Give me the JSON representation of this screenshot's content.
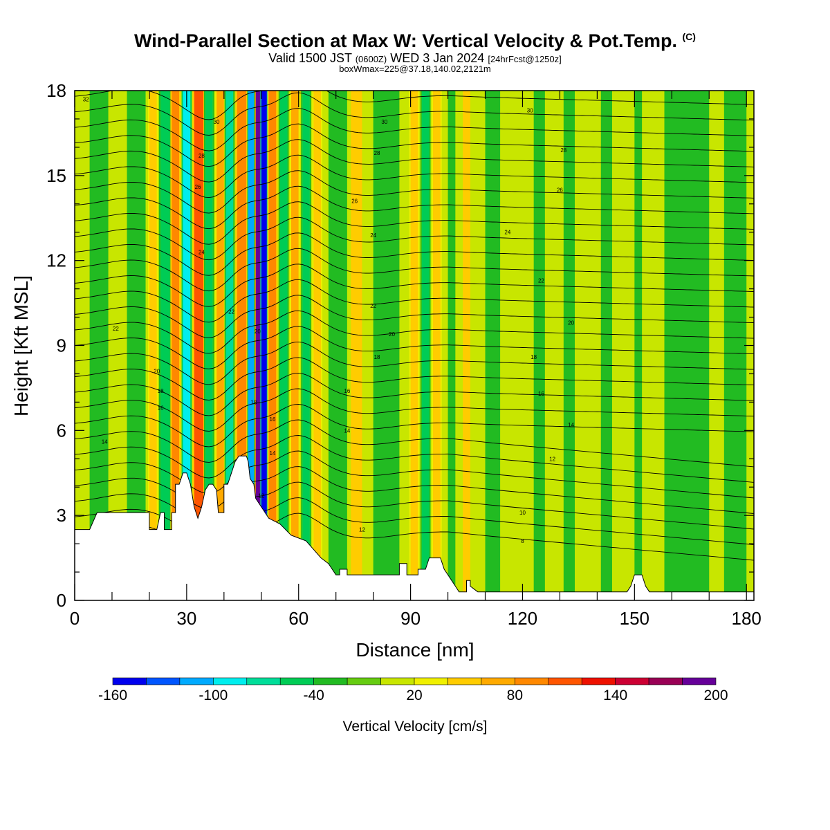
{
  "header": {
    "title": "Wind-Parallel Section at Max W: Vertical Velocity & Pot.Temp.",
    "title_mark": "(C)",
    "valid_pre": "Valid 1500 JST",
    "valid_z": "(0600Z)",
    "valid_date": "WED 3 Jan 2024",
    "valid_fcst": "[24hrFcst@1250z]",
    "box_info": "boxWmax=225@37.18,140.02,2121m"
  },
  "chart_data": {
    "type": "heatmap",
    "xlabel": "Distance [nm]",
    "ylabel": "Height [Kft MSL]",
    "xlim": [
      0,
      182
    ],
    "ylim": [
      0,
      18
    ],
    "x_ticks": [
      "0",
      "30",
      "60",
      "90",
      "120",
      "150",
      "180"
    ],
    "y_ticks": [
      "0",
      "3",
      "6",
      "9",
      "12",
      "15",
      "18"
    ],
    "colorbar": {
      "label": "Vertical Velocity [cm/s]",
      "tick_labels": [
        "-160",
        "-100",
        "-40",
        "20",
        "80",
        "140",
        "200"
      ],
      "levels": [
        -160,
        -140,
        -120,
        -100,
        -80,
        -60,
        -40,
        -20,
        0,
        20,
        40,
        60,
        80,
        100,
        120,
        140,
        160,
        180,
        200
      ],
      "colors": [
        "#0000ee",
        "#0055ff",
        "#00aaff",
        "#00eeee",
        "#00dd99",
        "#00cc55",
        "#22bb22",
        "#66cc11",
        "#c8e600",
        "#f0f000",
        "#ffcc00",
        "#ffaa00",
        "#ff8800",
        "#ff5500",
        "#ee1100",
        "#cc0033",
        "#990055",
        "#660099"
      ]
    },
    "background_vv_cms": 10,
    "vertical_velocity_bands": [
      {
        "x": 4,
        "w": 5,
        "vv": -30
      },
      {
        "x": 14,
        "w": 5,
        "vv": -30
      },
      {
        "x": 20,
        "w": 2,
        "vv": 50
      },
      {
        "x": 23,
        "w": 2.5,
        "vv": -50
      },
      {
        "x": 26,
        "w": 2,
        "vv": 90
      },
      {
        "x": 29,
        "w": 2,
        "vv": -90
      },
      {
        "x": 32,
        "w": 2.5,
        "vv": 110
      },
      {
        "x": 35,
        "w": 2,
        "vv": -60
      },
      {
        "x": 38,
        "w": 2,
        "vv": 70
      },
      {
        "x": 40.5,
        "w": 2,
        "vv": -70
      },
      {
        "x": 43.5,
        "w": 2.5,
        "vv": 90
      },
      {
        "x": 46.5,
        "w": 1.5,
        "vv": -110
      },
      {
        "x": 48.5,
        "w": 1.5,
        "vv": 180
      },
      {
        "x": 50,
        "w": 1.5,
        "vv": -150
      },
      {
        "x": 52,
        "w": 2,
        "vv": 90
      },
      {
        "x": 55,
        "w": 2,
        "vv": -60
      },
      {
        "x": 58,
        "w": 2,
        "vv": 60
      },
      {
        "x": 61,
        "w": 2,
        "vv": -50
      },
      {
        "x": 64,
        "w": 2,
        "vv": 50
      },
      {
        "x": 68,
        "w": 5,
        "vv": -40
      },
      {
        "x": 74,
        "w": 3,
        "vv": 40
      },
      {
        "x": 80,
        "w": 7,
        "vv": -40
      },
      {
        "x": 90,
        "w": 2,
        "vv": 50
      },
      {
        "x": 93,
        "w": 2,
        "vv": -60
      },
      {
        "x": 96,
        "w": 2,
        "vv": 50
      },
      {
        "x": 100,
        "w": 2,
        "vv": -30
      },
      {
        "x": 104,
        "w": 2,
        "vv": 40
      },
      {
        "x": 110,
        "w": 4,
        "vv": -25
      },
      {
        "x": 123,
        "w": 3,
        "vv": -25
      },
      {
        "x": 131,
        "w": 3,
        "vv": -25
      },
      {
        "x": 141,
        "w": 3,
        "vv": -25
      },
      {
        "x": 150,
        "w": 2,
        "vv": -25
      },
      {
        "x": 158,
        "w": 12,
        "vv": -30
      },
      {
        "x": 174,
        "w": 6,
        "vv": -25
      }
    ],
    "terrain_kft": [
      [
        0,
        2.5
      ],
      [
        4,
        2.5
      ],
      [
        6,
        3.1
      ],
      [
        15,
        3.1
      ],
      [
        20,
        3.1
      ],
      [
        20,
        2.5
      ],
      [
        22,
        2.5
      ],
      [
        23,
        3.1
      ],
      [
        24,
        3.1
      ],
      [
        24,
        2.5
      ],
      [
        26,
        2.5
      ],
      [
        26,
        3.1
      ],
      [
        27,
        3.1
      ],
      [
        27,
        4.1
      ],
      [
        28,
        4.1
      ],
      [
        29,
        4.5
      ],
      [
        30,
        4.5
      ],
      [
        31,
        4.1
      ],
      [
        32,
        3.3
      ],
      [
        33,
        2.9
      ],
      [
        34,
        3.3
      ],
      [
        35,
        3.9
      ],
      [
        36,
        4.1
      ],
      [
        37,
        4.1
      ],
      [
        38,
        3.9
      ],
      [
        38.5,
        3.1
      ],
      [
        40,
        3.1
      ],
      [
        40,
        4.1
      ],
      [
        41,
        4.1
      ],
      [
        42,
        4.5
      ],
      [
        43,
        4.9
      ],
      [
        44,
        5.1
      ],
      [
        46,
        5.1
      ],
      [
        46.5,
        4.9
      ],
      [
        47,
        4.3
      ],
      [
        48,
        4.1
      ],
      [
        48.5,
        3.6
      ],
      [
        50,
        3.3
      ],
      [
        51,
        3.1
      ],
      [
        52,
        2.9
      ],
      [
        55,
        2.7
      ],
      [
        58,
        2.3
      ],
      [
        60,
        2.2
      ],
      [
        62,
        2.1
      ],
      [
        64,
        1.8
      ],
      [
        66,
        1.5
      ],
      [
        68,
        1.3
      ],
      [
        69,
        1.1
      ],
      [
        70,
        0.9
      ],
      [
        71,
        0.9
      ],
      [
        71,
        1.1
      ],
      [
        73,
        1.1
      ],
      [
        73,
        0.9
      ],
      [
        75,
        0.9
      ],
      [
        80,
        0.9
      ],
      [
        87,
        0.9
      ],
      [
        87,
        1.3
      ],
      [
        89,
        1.3
      ],
      [
        89,
        0.9
      ],
      [
        92,
        0.9
      ],
      [
        92,
        1.1
      ],
      [
        94,
        1.1
      ],
      [
        95,
        1.5
      ],
      [
        98,
        1.5
      ],
      [
        99,
        1.1
      ],
      [
        100,
        0.9
      ],
      [
        101,
        0.7
      ],
      [
        102,
        0.5
      ],
      [
        103,
        0.3
      ],
      [
        105,
        0.3
      ],
      [
        105,
        0.7
      ],
      [
        106,
        0.7
      ],
      [
        106,
        0.5
      ],
      [
        108,
        0.3
      ],
      [
        130,
        0.3
      ],
      [
        148,
        0.3
      ],
      [
        149,
        0.5
      ],
      [
        150,
        0.9
      ],
      [
        152,
        0.9
      ],
      [
        153,
        0.5
      ],
      [
        154,
        0.3
      ],
      [
        182,
        0.3
      ]
    ],
    "theta_contour_labels": [
      {
        "text": "32",
        "x": 3,
        "y": 17.7
      },
      {
        "text": "30",
        "x": 38,
        "y": 16.9
      },
      {
        "text": "28",
        "x": 34,
        "y": 15.7
      },
      {
        "text": "26",
        "x": 33,
        "y": 14.6
      },
      {
        "text": "24",
        "x": 34,
        "y": 12.3
      },
      {
        "text": "22",
        "x": 42,
        "y": 10.2
      },
      {
        "text": "20",
        "x": 49,
        "y": 9.5
      },
      {
        "text": "18",
        "x": 48,
        "y": 7.0
      },
      {
        "text": "16",
        "x": 53,
        "y": 6.4
      },
      {
        "text": "14",
        "x": 53,
        "y": 5.2
      },
      {
        "text": "12",
        "x": 50,
        "y": 3.7
      },
      {
        "text": "30",
        "x": 83,
        "y": 16.9
      },
      {
        "text": "28",
        "x": 81,
        "y": 15.8
      },
      {
        "text": "26",
        "x": 75,
        "y": 14.1
      },
      {
        "text": "24",
        "x": 80,
        "y": 12.9
      },
      {
        "text": "22",
        "x": 80,
        "y": 10.4
      },
      {
        "text": "20",
        "x": 85,
        "y": 9.4
      },
      {
        "text": "18",
        "x": 81,
        "y": 8.6
      },
      {
        "text": "16",
        "x": 73,
        "y": 7.4
      },
      {
        "text": "14",
        "x": 73,
        "y": 6.0
      },
      {
        "text": "12",
        "x": 77,
        "y": 2.5
      },
      {
        "text": "30",
        "x": 122,
        "y": 17.3
      },
      {
        "text": "28",
        "x": 131,
        "y": 15.9
      },
      {
        "text": "26",
        "x": 130,
        "y": 14.5
      },
      {
        "text": "24",
        "x": 116,
        "y": 13.0
      },
      {
        "text": "22",
        "x": 125,
        "y": 11.3
      },
      {
        "text": "20",
        "x": 133,
        "y": 9.8
      },
      {
        "text": "18",
        "x": 123,
        "y": 8.6
      },
      {
        "text": "16",
        "x": 125,
        "y": 7.3
      },
      {
        "text": "14",
        "x": 133,
        "y": 6.2
      },
      {
        "text": "12",
        "x": 128,
        "y": 5.0
      },
      {
        "text": "10",
        "x": 120,
        "y": 3.1
      },
      {
        "text": "8",
        "x": 120,
        "y": 2.1
      },
      {
        "text": "22",
        "x": 11,
        "y": 9.6
      },
      {
        "text": "20",
        "x": 22,
        "y": 8.1
      },
      {
        "text": "18",
        "x": 23,
        "y": 7.4
      },
      {
        "text": "16",
        "x": 23,
        "y": 6.8
      },
      {
        "text": "14",
        "x": 8,
        "y": 5.6
      }
    ]
  }
}
